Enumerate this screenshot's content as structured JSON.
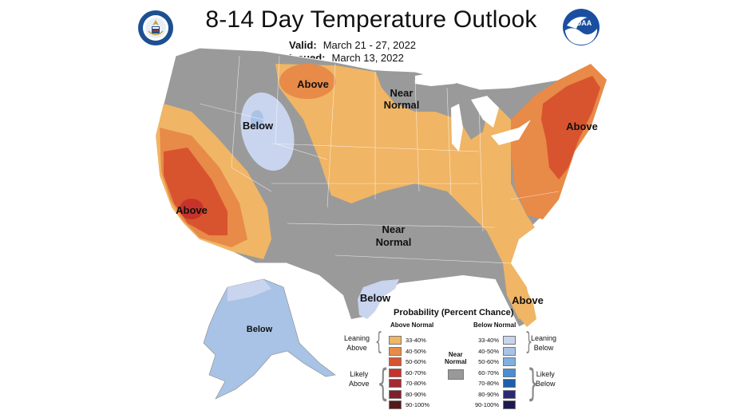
{
  "header": {
    "title": "8-14 Day Temperature Outlook",
    "valid_label": "Valid:",
    "valid_value": "March 21 - 27, 2022",
    "issued_label": "Issued:",
    "issued_value": "March 13, 2022"
  },
  "logos": {
    "left": "department-of-commerce-seal",
    "right": "noaa-logo"
  },
  "map": {
    "labels": {
      "nw_below": "Below",
      "north_above": "Above",
      "great_lakes_near": [
        "Near",
        "Normal"
      ],
      "ne_above": "Above",
      "ca_above": "Above",
      "south_near": [
        "Near",
        "Normal"
      ],
      "tx_below": "Below",
      "fl_above": "Above",
      "ak_below": "Below"
    },
    "colors": {
      "near_normal": "#9a9a9a",
      "above_33_40": "#f0b565",
      "above_40_50": "#e88a48",
      "above_50_60": "#d8542f",
      "above_60_70": "#c7332a",
      "below_33_40": "#c9d5ee",
      "below_40_50": "#a9c3e6",
      "lake_white": "#ffffff"
    }
  },
  "legend": {
    "title": "Probability (Percent Chance)",
    "above_header": "Above Normal",
    "below_header": "Below Normal",
    "near_label": [
      "Near",
      "Normal"
    ],
    "leaning_above": [
      "Leaning",
      "Above"
    ],
    "likely_above": [
      "Likely",
      "Above"
    ],
    "leaning_below": [
      "Leaning",
      "Below"
    ],
    "likely_below": [
      "Likely",
      "Below"
    ],
    "above_rows": [
      {
        "pct": "33-40%",
        "color": "#f0b565"
      },
      {
        "pct": "40-50%",
        "color": "#e88a48"
      },
      {
        "pct": "50-60%",
        "color": "#d8542f"
      },
      {
        "pct": "60-70%",
        "color": "#c7332a"
      },
      {
        "pct": "70-80%",
        "color": "#a12a35"
      },
      {
        "pct": "80-90%",
        "color": "#80202a"
      },
      {
        "pct": "90-100%",
        "color": "#561818"
      }
    ],
    "below_rows": [
      {
        "pct": "33-40%",
        "color": "#c9d5ee"
      },
      {
        "pct": "40-50%",
        "color": "#a9c3e6"
      },
      {
        "pct": "50-60%",
        "color": "#7fb0e0"
      },
      {
        "pct": "60-70%",
        "color": "#4a8fd1"
      },
      {
        "pct": "70-80%",
        "color": "#1f5ea8"
      },
      {
        "pct": "80-90%",
        "color": "#2c2878"
      },
      {
        "pct": "90-100%",
        "color": "#1c1850"
      }
    ]
  }
}
